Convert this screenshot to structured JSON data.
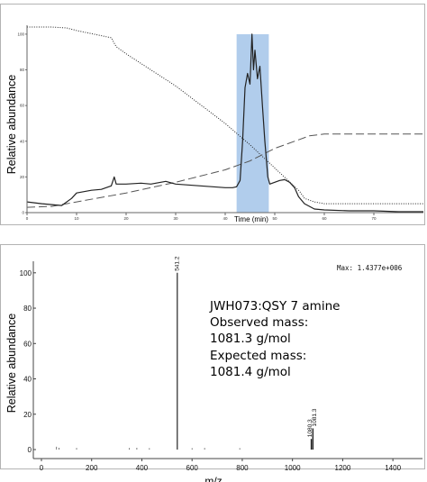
{
  "chart_data": [
    {
      "type": "line",
      "title": "",
      "xlabel": "Time (min)",
      "ylabel": "Relative abundance",
      "xlim": [
        0,
        80
      ],
      "ylim": [
        0,
        105
      ],
      "xticks": [
        0,
        10,
        20,
        30,
        40,
        50,
        60,
        70
      ],
      "yticks": [
        0,
        20,
        40,
        60,
        80,
        100
      ],
      "grid": false,
      "highlight_band": {
        "x": [
          42.3,
          48.8
        ],
        "color": "#a9c8ea"
      },
      "series": [
        {
          "style": "dotted",
          "x": [
            0,
            5,
            8,
            10,
            17,
            18,
            20,
            30,
            40,
            45,
            50,
            55,
            56,
            58,
            60,
            80
          ],
          "y": [
            104,
            104,
            103.5,
            102,
            98,
            93,
            89,
            71,
            50,
            38,
            25,
            12,
            8,
            6,
            5,
            5
          ]
        },
        {
          "style": "dashed",
          "x": [
            0,
            5,
            8,
            10,
            20,
            30,
            40,
            45,
            50,
            55,
            57,
            60,
            70,
            80
          ],
          "y": [
            3,
            3.5,
            5,
            6,
            11,
            17,
            24,
            29,
            36,
            41,
            43,
            44,
            44,
            44
          ]
        },
        {
          "style": "solid",
          "x": [
            0,
            3,
            5,
            7,
            9,
            10,
            13,
            15,
            17,
            17.6,
            18,
            20,
            23,
            25,
            28,
            30,
            35,
            40,
            41.5,
            42.3,
            43,
            43.5,
            44,
            44.5,
            45,
            45.4,
            45.7,
            46,
            46.5,
            47,
            47.5,
            48,
            48.6,
            49,
            50,
            51,
            52,
            53,
            54,
            54.8,
            56,
            58,
            60,
            65,
            70,
            75,
            80
          ],
          "y": [
            6,
            5,
            4.5,
            4,
            8,
            11,
            12.5,
            13,
            15,
            20,
            16,
            16,
            16.5,
            16,
            17.5,
            16,
            15,
            14,
            14,
            14.5,
            18,
            40,
            70,
            78,
            72,
            100,
            80,
            91,
            75,
            82,
            60,
            40,
            20,
            16,
            17,
            18,
            18.5,
            17,
            14,
            9,
            5,
            2,
            1.5,
            1,
            1,
            0.5,
            0.5
          ]
        }
      ]
    },
    {
      "type": "bar",
      "title": "",
      "xlabel": "m/z",
      "ylabel": "Relative abundance",
      "xlim": [
        0,
        1500
      ],
      "ylim": [
        0,
        105
      ],
      "xticks": [
        0,
        200,
        400,
        600,
        800,
        1000,
        1200,
        1400
      ],
      "yticks": [
        0,
        20,
        40,
        60,
        80,
        100
      ],
      "max_label": "Max: 1.4377e+006",
      "peaks": [
        {
          "mz": 541.2,
          "intensity": 100,
          "label": "541.2"
        },
        {
          "mz": 1081.3,
          "intensity": 12,
          "label": "1081.3"
        },
        {
          "mz": 1080.3,
          "intensity": 6,
          "label": "1080.3"
        }
      ],
      "noise": [
        {
          "mz": 60,
          "intensity": 1.2
        },
        {
          "mz": 70,
          "intensity": 0.6
        },
        {
          "mz": 140,
          "intensity": 0.5
        },
        {
          "mz": 350,
          "intensity": 0.5
        },
        {
          "mz": 380,
          "intensity": 0.6
        },
        {
          "mz": 430,
          "intensity": 0.4
        },
        {
          "mz": 600,
          "intensity": 0.4
        },
        {
          "mz": 650,
          "intensity": 0.5
        },
        {
          "mz": 790,
          "intensity": 0.4
        }
      ]
    }
  ],
  "annotation": {
    "lines": [
      "JWH073:QSY 7 amine",
      "Observed mass:",
      "1081.3 g/mol",
      "Expected mass:",
      "1081.4 g/mol"
    ]
  }
}
